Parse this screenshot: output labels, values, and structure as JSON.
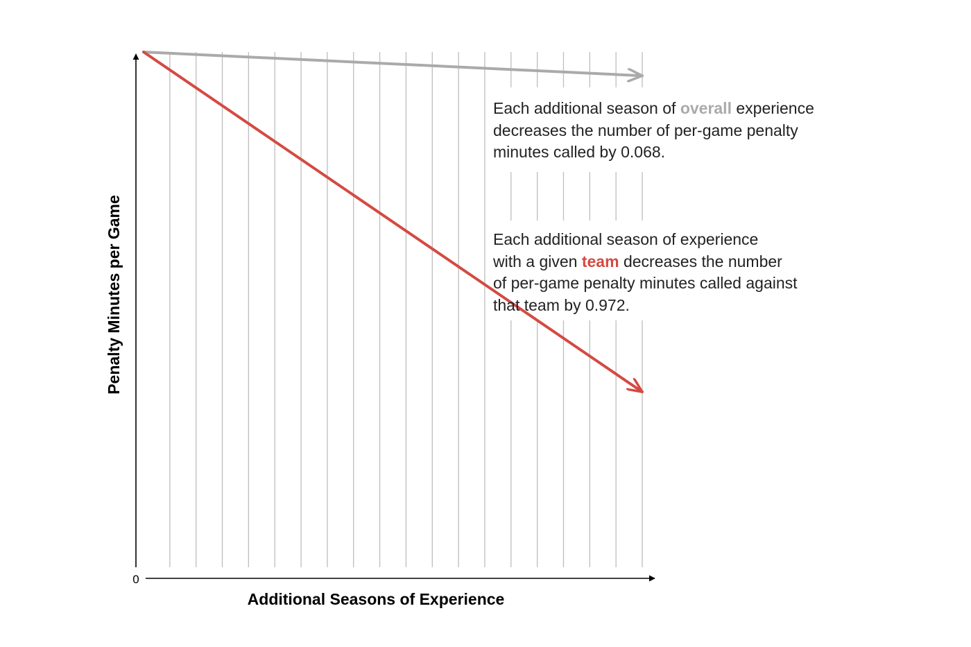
{
  "chart_data": {
    "type": "line",
    "ylabel": "Penalty Minutes per Game",
    "xlabel": "Additional Seasons of Experience",
    "origin_label": "0",
    "grid": "vertical",
    "series": [
      {
        "key": "overall",
        "color": "#aaaaaa",
        "slope": -0.068,
        "x": [
          0,
          19
        ],
        "y": [
          0,
          -1.29
        ]
      },
      {
        "key": "team",
        "color": "#d44a42",
        "slope": -0.972,
        "x": [
          0,
          19
        ],
        "y": [
          0,
          -18.47
        ]
      }
    ]
  },
  "annotations": {
    "overall": {
      "line1_pre": "Each additional season of ",
      "line1_highlight": "overall",
      "line1_post": " experience",
      "line2": "decreases the number of per-game penalty",
      "line3": "minutes called by 0.068.",
      "highlight_color": "#aaaaaa"
    },
    "team": {
      "line1": "Each additional season of experience",
      "line2_pre": "with a given ",
      "line2_highlight": "team",
      "line2_post": " decreases the number",
      "line3": "of per-game penalty minutes called against",
      "line4": "that team by 0.972.",
      "highlight_color": "#d44a42"
    }
  }
}
